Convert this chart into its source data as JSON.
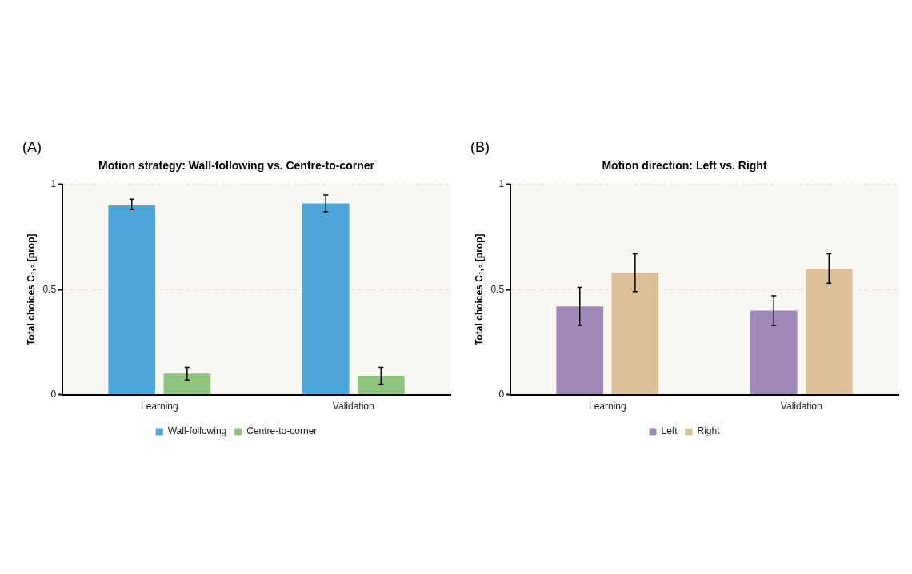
{
  "chart_data": [
    {
      "type": "bar",
      "title": "Motion strategy: Wall-following vs. Centre-to-corner",
      "ylabel": "Total choices C₁,₂ [prop]",
      "annotations": [
        "(A)"
      ],
      "categories": [
        "Learning",
        "Validation"
      ],
      "series": [
        {
          "name": "Wall-following",
          "color": "#4fa6db",
          "values": [
            0.9,
            0.91
          ],
          "errors": [
            [
              0.88,
              0.93
            ],
            [
              0.87,
              0.95
            ]
          ]
        },
        {
          "name": "Centre-to-corner",
          "color": "#8ec47e",
          "values": [
            0.1,
            0.09
          ],
          "errors": [
            [
              0.07,
              0.13
            ],
            [
              0.05,
              0.13
            ]
          ]
        }
      ],
      "ylim": [
        0,
        1
      ],
      "yticks": [
        0,
        0.5,
        1
      ],
      "grid": "y",
      "legend": "bottom"
    },
    {
      "type": "bar",
      "title": "Motion direction: Left vs. Right",
      "ylabel": "Total choices C₁,₂ [prop]",
      "annotations": [
        "(B)"
      ],
      "categories": [
        "Learning",
        "Validation"
      ],
      "series": [
        {
          "name": "Left",
          "color": "#a089b9",
          "values": [
            0.42,
            0.4
          ],
          "errors": [
            [
              0.33,
              0.51
            ],
            [
              0.33,
              0.47
            ]
          ]
        },
        {
          "name": "Right",
          "color": "#dbc097",
          "values": [
            0.58,
            0.6
          ],
          "errors": [
            [
              0.49,
              0.67
            ],
            [
              0.53,
              0.67
            ]
          ]
        }
      ],
      "ylim": [
        0,
        1
      ],
      "yticks": [
        0,
        0.5,
        1
      ],
      "grid": "y",
      "legend": "bottom"
    }
  ]
}
